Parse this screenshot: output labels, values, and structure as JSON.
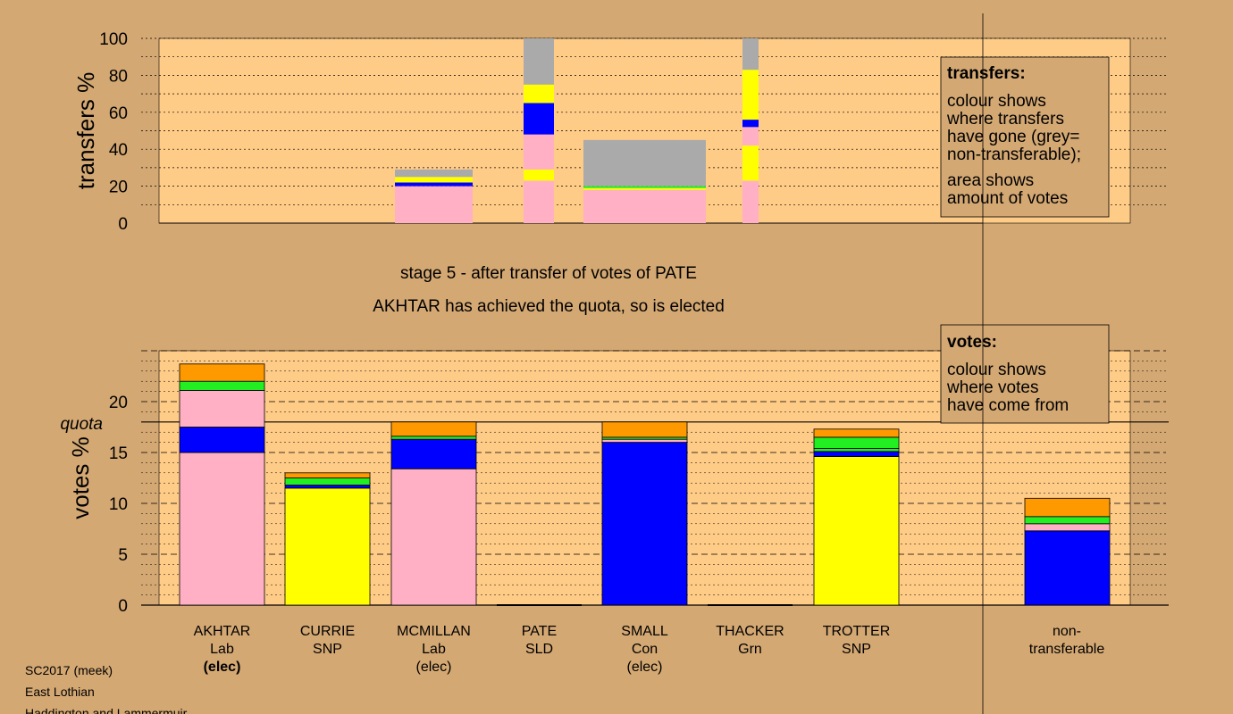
{
  "colors": {
    "background": "#d4a873",
    "plot_bg": "#ffcc88",
    "Lab": "#ffb0c4",
    "SNP": "#ffff00",
    "Con": "#0000ff",
    "Grn": "#22ee22",
    "SLD": "#ff9900",
    "non_transferable": "#aaaaaa"
  },
  "chart_data": [
    {
      "type": "bar",
      "ylabel": "transfers %",
      "ylim": [
        0,
        100
      ],
      "yticks": [
        0,
        20,
        40,
        60,
        80,
        100
      ],
      "grid": true,
      "bars": [
        {
          "segments": [
            {
              "party": "Lab",
              "value": 20
            },
            {
              "party": "Con",
              "value": 2
            },
            {
              "party": "SNP",
              "value": 3
            },
            {
              "party": "non_transferable",
              "value": 4
            }
          ]
        },
        {
          "segments": [
            {
              "party": "Lab",
              "value": 23
            },
            {
              "party": "SNP",
              "value": 6
            },
            {
              "party": "Lab",
              "value": 19
            },
            {
              "party": "Con",
              "value": 17
            },
            {
              "party": "SNP",
              "value": 10
            },
            {
              "party": "non_transferable",
              "value": 25
            }
          ]
        },
        {
          "segments": [
            {
              "party": "Lab",
              "value": 7
            },
            {
              "party": "Lab",
              "value": 11
            },
            {
              "party": "SNP",
              "value": 1
            },
            {
              "party": "Grn",
              "value": 1
            },
            {
              "party": "non_transferable",
              "value": 25
            }
          ]
        },
        {
          "segments": [
            {
              "party": "Lab",
              "value": 23
            },
            {
              "party": "SNP",
              "value": 19
            },
            {
              "party": "Lab",
              "value": 10
            },
            {
              "party": "Con",
              "value": 4
            },
            {
              "party": "SNP",
              "value": 27
            },
            {
              "party": "non_transferable",
              "value": 17
            }
          ]
        }
      ],
      "legend": {
        "title": "transfers:",
        "lines1": [
          "colour shows",
          "where transfers",
          "have gone (grey=",
          "non-transferable);"
        ],
        "lines2": [
          "area shows",
          "amount of votes"
        ]
      }
    },
    {
      "type": "bar",
      "ylabel": "votes %",
      "ylim": [
        0,
        25
      ],
      "yticks": [
        0,
        5,
        10,
        15,
        20
      ],
      "quota": 18,
      "quota_label": "quota",
      "grid": true,
      "categories": [
        {
          "name": "AKHTAR",
          "party": "Lab",
          "status": "(elec)",
          "status_bold": true
        },
        {
          "name": "CURRIE",
          "party": "SNP",
          "status": "",
          "status_bold": false
        },
        {
          "name": "MCMILLAN",
          "party": "Lab",
          "status": "(elec)",
          "status_bold": false
        },
        {
          "name": "PATE",
          "party": "SLD",
          "status": "",
          "status_bold": false
        },
        {
          "name": "SMALL",
          "party": "Con",
          "status": "(elec)",
          "status_bold": false
        },
        {
          "name": "THACKER",
          "party": "Grn",
          "status": "",
          "status_bold": false
        },
        {
          "name": "TROTTER",
          "party": "SNP",
          "status": "",
          "status_bold": false
        }
      ],
      "series_values": [
        [
          {
            "party": "Lab",
            "value": 15.0
          },
          {
            "party": "Con",
            "value": 2.5
          },
          {
            "party": "Lab",
            "value": 3.6
          },
          {
            "party": "Grn",
            "value": 0.9
          },
          {
            "party": "SLD",
            "value": 1.7
          }
        ],
        [
          {
            "party": "SNP",
            "value": 11.5
          },
          {
            "party": "Con",
            "value": 0.3
          },
          {
            "party": "Grn",
            "value": 0.7
          },
          {
            "party": "SLD",
            "value": 0.5
          }
        ],
        [
          {
            "party": "Lab",
            "value": 13.4
          },
          {
            "party": "Con",
            "value": 2.9
          },
          {
            "party": "Grn",
            "value": 0.3
          },
          {
            "party": "SLD",
            "value": 1.4
          }
        ],
        [],
        [
          {
            "party": "Con",
            "value": 16.0
          },
          {
            "party": "Lab",
            "value": 0.3
          },
          {
            "party": "Grn",
            "value": 0.2
          },
          {
            "party": "SLD",
            "value": 1.5
          }
        ],
        [],
        [
          {
            "party": "SNP",
            "value": 14.6
          },
          {
            "party": "Con",
            "value": 0.5
          },
          {
            "party": "Grn",
            "value": 0.3
          },
          {
            "party": "Grn",
            "value": 1.1
          },
          {
            "party": "SLD",
            "value": 0.8
          }
        ]
      ],
      "non_transferable": {
        "label_lines": [
          "non-",
          "transferable"
        ],
        "segments": [
          {
            "party": "Con",
            "value": 7.3
          },
          {
            "party": "Lab",
            "value": 0.7
          },
          {
            "party": "Grn",
            "value": 0.7
          },
          {
            "party": "SLD",
            "value": 1.8
          }
        ]
      },
      "legend": {
        "title": "votes:",
        "lines": [
          "colour shows",
          "where votes",
          "have come from"
        ]
      }
    }
  ],
  "stage_title": "stage 5 - after transfer of votes of PATE",
  "stage_subtitle": "AKHTAR has achieved the quota, so is elected",
  "footer": {
    "line1": "SC2017 (meek)",
    "line2": "East Lothian",
    "line3": "Haddington and Lammermuir"
  }
}
